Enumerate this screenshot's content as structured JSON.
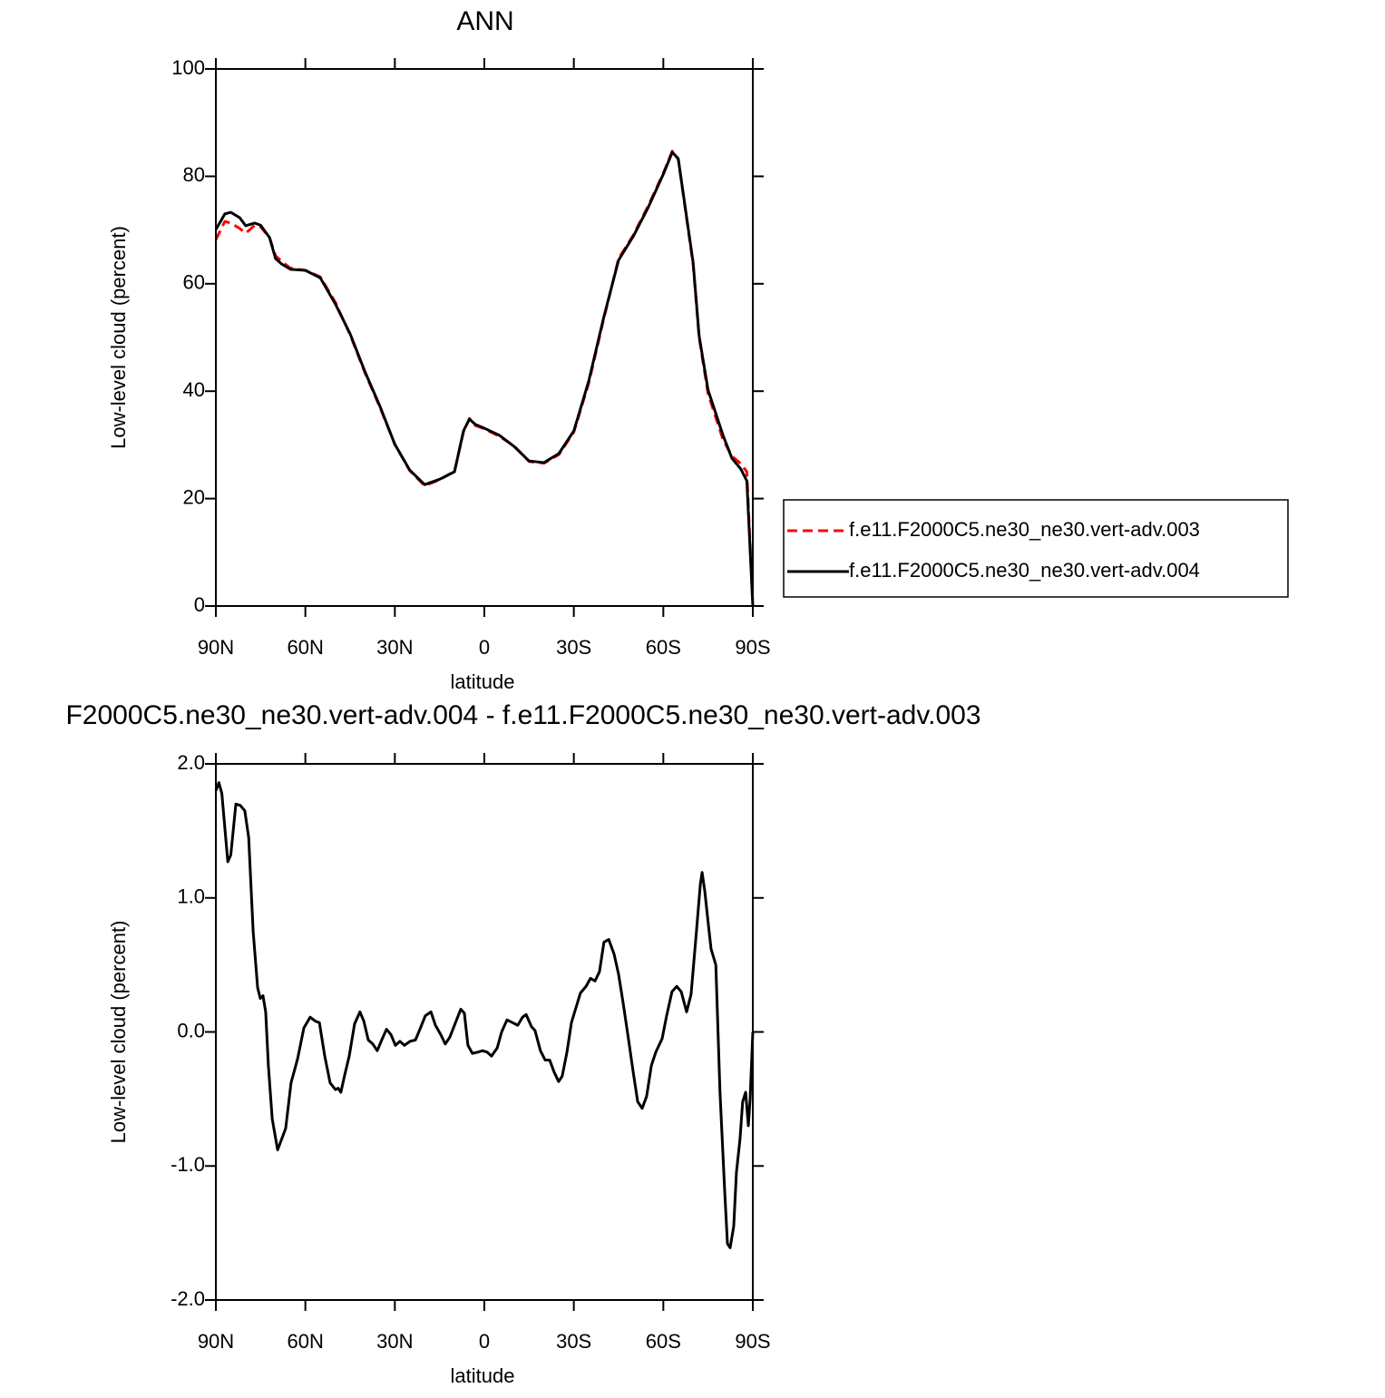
{
  "chart_data": [
    {
      "type": "line",
      "title": "ANN",
      "x_label": "latitude",
      "y_label": "Low-level cloud (percent)",
      "xlim": [
        90,
        -90
      ],
      "xticks": [
        {
          "value": 90,
          "label": "90N"
        },
        {
          "value": 60,
          "label": "60N"
        },
        {
          "value": 30,
          "label": "30N"
        },
        0,
        {
          "value": -30,
          "label": "30S"
        },
        {
          "value": -60,
          "label": "60S"
        },
        {
          "value": -90,
          "label": "90S"
        }
      ],
      "ylim": [
        0,
        100
      ],
      "yticks": [
        0,
        20,
        40,
        60,
        80,
        100
      ],
      "grid": false,
      "legend": "outside-right",
      "x": [
        90,
        87,
        85,
        82,
        80,
        77,
        75,
        72,
        70,
        68,
        65,
        60,
        55,
        50,
        45,
        40,
        35,
        30,
        25,
        20,
        15,
        10,
        7,
        5,
        3,
        0,
        -5,
        -10,
        -15,
        -20,
        -25,
        -30,
        -35,
        -40,
        -45,
        -50,
        -55,
        -60,
        -63,
        -65,
        -70,
        -72,
        -75,
        -80,
        -83,
        -86,
        -88,
        -90
      ],
      "series": [
        {
          "name": "f.e11.F2000C5.ne30_ne30.vert-adv.003",
          "color": "#ff0000",
          "line_style": "dashed",
          "values": [
            68.2,
            71.6,
            71.3,
            70.3,
            69.4,
            70.9,
            70.6,
            68.6,
            65.2,
            64.2,
            62.9,
            62.5,
            61.3,
            56.6,
            50.5,
            43.4,
            37.0,
            30.1,
            25.2,
            22.4,
            23.5,
            25.1,
            32.4,
            34.9,
            33.6,
            33.0,
            31.6,
            29.8,
            26.9,
            26.6,
            28.2,
            32.4,
            41.5,
            53.4,
            64.7,
            69.1,
            74.6,
            80.6,
            84.7,
            83.2,
            63.6,
            50.0,
            39.5,
            31.0,
            27.9,
            26.5,
            25.0,
            0
          ]
        },
        {
          "name": "f.e11.F2000C5.ne30_ne30.vert-adv.004",
          "color": "#000000",
          "line_style": "solid",
          "values": [
            70.1,
            73.0,
            73.3,
            72.3,
            70.8,
            71.3,
            70.9,
            68.6,
            64.7,
            63.7,
            62.7,
            62.5,
            61.1,
            56.3,
            50.7,
            43.6,
            37.2,
            30.1,
            25.3,
            22.6,
            23.6,
            25.0,
            32.6,
            34.8,
            33.8,
            33.1,
            31.8,
            29.7,
            27.0,
            26.7,
            28.4,
            32.6,
            41.9,
            53.7,
            64.4,
            68.9,
            74.3,
            80.4,
            84.5,
            83.3,
            63.9,
            50.3,
            40.2,
            31.8,
            27.5,
            25.5,
            23.3,
            0
          ]
        }
      ]
    },
    {
      "type": "line",
      "title": "F2000C5.ne30_ne30.vert-adv.004 - f.e11.F2000C5.ne30_ne30.vert-adv.003",
      "x_label": "latitude",
      "y_label": "Low-level cloud (percent)",
      "xlim": [
        90,
        -90
      ],
      "xticks": [
        {
          "value": 90,
          "label": "90N"
        },
        {
          "value": 60,
          "label": "60N"
        },
        {
          "value": 30,
          "label": "30N"
        },
        0,
        {
          "value": -30,
          "label": "30S"
        },
        {
          "value": -60,
          "label": "60S"
        },
        {
          "value": -90,
          "label": "90S"
        }
      ],
      "ylim": [
        -2,
        2
      ],
      "yticks": [
        {
          "value": -2,
          "label": "-2.0"
        },
        {
          "value": -1,
          "label": "-1.0"
        },
        {
          "value": 0,
          "label": "0.0"
        },
        {
          "value": 1,
          "label": "1.0"
        },
        {
          "value": 2,
          "label": "2.0"
        }
      ],
      "grid": false,
      "color": "#000000",
      "x": [
        90,
        89,
        88,
        86,
        85,
        83.3,
        81.8,
        80.3,
        79,
        77.5,
        76,
        75.1,
        74.2,
        73.3,
        72.4,
        71.1,
        69.3,
        66.6,
        64.8,
        62.6,
        60.5,
        58.4,
        56.6,
        55.3,
        53.5,
        51.7,
        49.9,
        49,
        48.1,
        46.9,
        45.3,
        43.5,
        41.7,
        40.4,
        38.9,
        37.4,
        35.9,
        34.4,
        32.8,
        31.3,
        29.8,
        28.3,
        26.8,
        24.9,
        23.1,
        21.6,
        19.8,
        17.9,
        16.4,
        14.6,
        13.1,
        11.6,
        10,
        7.9,
        6.7,
        5.5,
        4,
        2.1,
        0.6,
        -0.9,
        -2.4,
        -4.3,
        -5.8,
        -7.6,
        -9.4,
        -11.2,
        -12.8,
        -14,
        -15.8,
        -17,
        -18.8,
        -20.4,
        -21.9,
        -23.4,
        -24.9,
        -26.1,
        -27.7,
        -29.2,
        -30.7,
        -32.2,
        -34.1,
        -35.6,
        -37.1,
        -38.6,
        -40.1,
        -41.7,
        -43.5,
        -45,
        -46.5,
        -48.3,
        -49.9,
        -51.4,
        -52.9,
        -54.4,
        -56,
        -57.5,
        -59.6,
        -61.1,
        -62.9,
        -64.5,
        -66,
        -67.8,
        -69.3,
        -71.1,
        -72.4,
        -73,
        -73.9,
        -75.1,
        -76,
        -77.6,
        -79,
        -80.6,
        -81.5,
        -82.4,
        -83.6,
        -84.5,
        -85.7,
        -86.6,
        -87.6,
        -88.5,
        -89.1,
        -90
      ],
      "values": [
        1.8,
        1.86,
        1.78,
        1.27,
        1.32,
        1.7,
        1.69,
        1.65,
        1.45,
        0.75,
        0.33,
        0.25,
        0.27,
        0.15,
        -0.25,
        -0.65,
        -0.88,
        -0.72,
        -0.38,
        -0.2,
        0.03,
        0.11,
        0.08,
        0.07,
        -0.18,
        -0.38,
        -0.43,
        -0.42,
        -0.45,
        -0.33,
        -0.18,
        0.06,
        0.15,
        0.08,
        -0.06,
        -0.09,
        -0.14,
        -0.06,
        0.02,
        -0.02,
        -0.1,
        -0.07,
        -0.1,
        -0.07,
        -0.06,
        0.02,
        0.12,
        0.15,
        0.05,
        -0.02,
        -0.09,
        -0.04,
        0.05,
        0.17,
        0.14,
        -0.1,
        -0.16,
        -0.15,
        -0.14,
        -0.15,
        -0.18,
        -0.12,
        0,
        0.09,
        0.07,
        0.05,
        0.11,
        0.13,
        0.04,
        0.01,
        -0.14,
        -0.21,
        -0.21,
        -0.3,
        -0.37,
        -0.33,
        -0.15,
        0.07,
        0.18,
        0.29,
        0.34,
        0.4,
        0.38,
        0.45,
        0.67,
        0.69,
        0.58,
        0.43,
        0.22,
        -0.05,
        -0.3,
        -0.52,
        -0.57,
        -0.48,
        -0.25,
        -0.15,
        -0.05,
        0.12,
        0.3,
        0.34,
        0.3,
        0.15,
        0.28,
        0.75,
        1.1,
        1.19,
        1.05,
        0.8,
        0.62,
        0.5,
        -0.45,
        -1.2,
        -1.58,
        -1.61,
        -1.45,
        -1.05,
        -0.8,
        -0.52,
        -0.45,
        -0.7,
        -0.5,
        0
      ]
    }
  ]
}
